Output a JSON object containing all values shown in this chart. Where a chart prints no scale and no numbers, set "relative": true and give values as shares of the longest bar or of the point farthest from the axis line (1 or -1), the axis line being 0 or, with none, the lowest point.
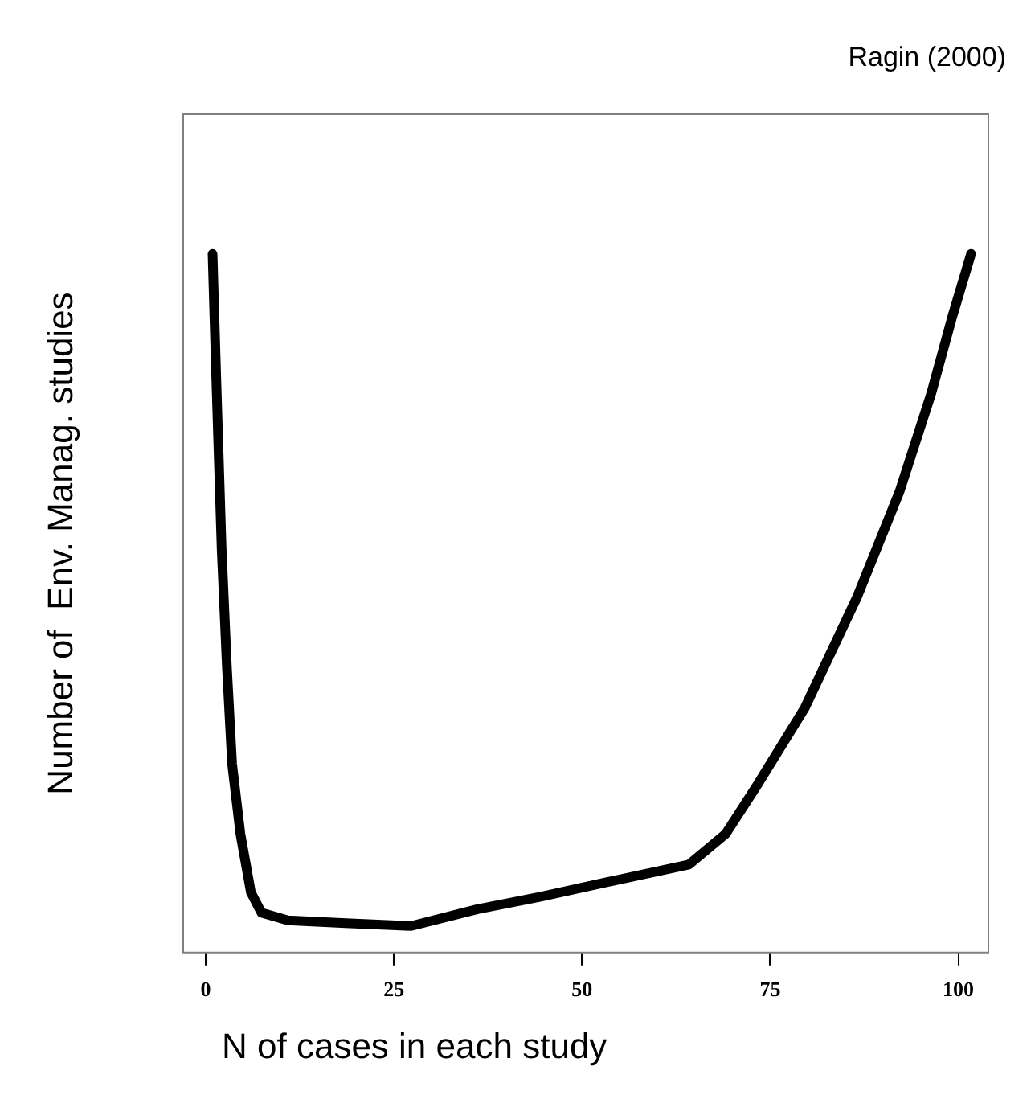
{
  "chart_data": {
    "type": "line",
    "relative": true,
    "xlabel": "N of cases in each study",
    "ylabel": "Number of  Env. Manag. studies",
    "annotations": [
      "Ragin (2000)"
    ],
    "xlim": [
      -3,
      104
    ],
    "xticks": [
      0,
      25,
      50,
      75,
      100
    ],
    "marker": "none",
    "legend": false,
    "series": [
      {
        "color": "#000000",
        "x": [
          0.9,
          1.4,
          2.1,
          2.8,
          3.5,
          4.6,
          6.0,
          7.4,
          10.9,
          18.6,
          27.3,
          36.1,
          44.5,
          53,
          64.2,
          69.1,
          73.3,
          79.6,
          86.6,
          92.2,
          96.4,
          99.2,
          101.7
        ],
        "values": [
          1.0,
          0.82,
          0.58,
          0.41,
          0.27,
          0.17,
          0.086,
          0.057,
          0.046,
          0.042,
          0.038,
          0.062,
          0.08,
          0.1,
          0.126,
          0.17,
          0.24,
          0.35,
          0.51,
          0.66,
          0.8,
          0.91,
          1.0
        ]
      }
    ]
  }
}
